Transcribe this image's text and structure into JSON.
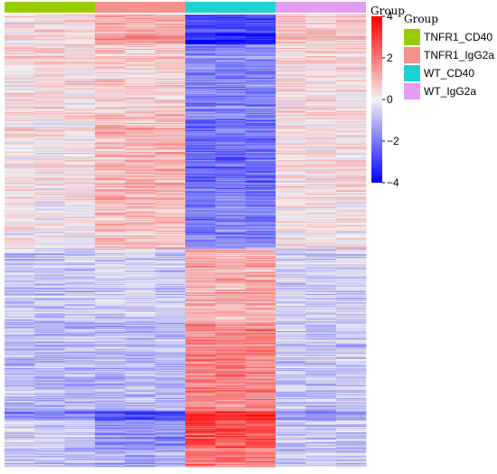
{
  "chart_data": {
    "type": "heatmap",
    "title": "",
    "xlabel": "",
    "ylabel": "",
    "samples_per_group": 3,
    "groups": [
      {
        "name": "TNFR1_CD40",
        "color": "#99cc00"
      },
      {
        "name": "TNFR1_IgG2a",
        "color": "#f4918a"
      },
      {
        "name": "WT_CD40",
        "color": "#1fd1d1"
      },
      {
        "name": "WT_IgG2a",
        "color": "#e39ef2"
      }
    ],
    "annotation_title": "Group",
    "colorbar": {
      "min": -4,
      "max": 4,
      "ticks": [
        "4",
        "2",
        "0",
        "−2",
        "−4"
      ],
      "tick_values": [
        4,
        2,
        0,
        -2,
        -4
      ],
      "low_color": "#0000ff",
      "mid_color": "#f2f2f2",
      "high_color": "#ff0000"
    },
    "row_blocks": [
      {
        "rows": 20,
        "group_means": [
          0.3,
          1.1,
          -2.8,
          0.7
        ]
      },
      {
        "rows": 12,
        "group_means": [
          0.5,
          1.6,
          -3.6,
          1.0
        ]
      },
      {
        "rows": 80,
        "group_means": [
          0.4,
          0.6,
          -1.8,
          0.4
        ]
      },
      {
        "rows": 80,
        "group_means": [
          0.2,
          1.0,
          -2.2,
          0.3
        ]
      },
      {
        "rows": 60,
        "group_means": [
          0.1,
          0.8,
          -1.9,
          0.2
        ]
      },
      {
        "rows": 80,
        "group_means": [
          -0.7,
          -0.5,
          1.1,
          -0.5
        ]
      },
      {
        "rows": 95,
        "group_means": [
          -0.9,
          -0.9,
          1.9,
          -0.7
        ]
      },
      {
        "rows": 10,
        "group_means": [
          -1.8,
          -2.8,
          3.5,
          -1.6
        ]
      },
      {
        "rows": 30,
        "group_means": [
          -0.6,
          -1.6,
          2.6,
          -0.8
        ]
      },
      {
        "rows": 20,
        "group_means": [
          -0.8,
          -1.2,
          2.0,
          -0.7
        ]
      }
    ]
  }
}
